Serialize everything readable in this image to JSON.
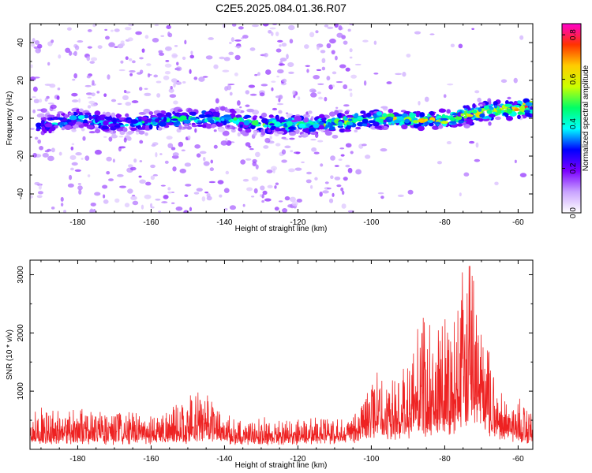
{
  "title": "C2E5.2025.084.01.36.R07",
  "chart_data": [
    {
      "type": "heatmap",
      "xlabel": "Height of straight line (km)",
      "ylabel": "Frequency (Hz)",
      "xlim": [
        -193,
        -56
      ],
      "ylim": [
        -50,
        50
      ],
      "xticks": [
        -180,
        -160,
        -140,
        -120,
        -100,
        -80,
        -60
      ],
      "xtick_labels": [
        "-180",
        "-160",
        "-140",
        "-120",
        "-100",
        "-80",
        "-60"
      ],
      "yticks": [
        -40,
        -20,
        0,
        20,
        40
      ],
      "ytick_labels": [
        "-40",
        "-20",
        "0",
        "20",
        "40"
      ],
      "colorbar": {
        "label": "Normalized spectral amplitude",
        "range": [
          0,
          0.85
        ],
        "ticks": [
          0.0,
          0.2,
          0.4,
          0.6,
          0.8
        ],
        "tick_labels": [
          "0.0",
          "0.2",
          "0.4",
          "0.6",
          "0.8"
        ],
        "colors": [
          "#ffffff",
          "#c9a3ff",
          "#7b00ff",
          "#0000ff",
          "#00ffff",
          "#00ff66",
          "#ccff00",
          "#ffcc00",
          "#ff3300",
          "#ff00cc"
        ]
      },
      "ridge": {
        "description_points_x": [
          -190,
          -180,
          -170,
          -160,
          -150,
          -140,
          -130,
          -120,
          -110,
          -100,
          -90,
          -80,
          -70,
          -60,
          -57
        ],
        "frequency_hz": [
          -4,
          0,
          -3,
          -2,
          0,
          0,
          -3,
          -3,
          -3,
          0,
          -1,
          -1,
          3,
          5,
          6
        ]
      }
    },
    {
      "type": "line",
      "xlabel": "Height of straight line (km)",
      "ylabel": "SNR (10 * v/v)",
      "xlim": [
        -193,
        -56
      ],
      "ylim": [
        0,
        3250
      ],
      "xticks": [
        -180,
        -160,
        -140,
        -120,
        -100,
        -80,
        -60
      ],
      "xtick_labels": [
        "-180",
        "-160",
        "-140",
        "-120",
        "-100",
        "-80",
        "-60"
      ],
      "yticks": [
        1000,
        2000,
        3000
      ],
      "ytick_labels": [
        "1000",
        "2000",
        "3000"
      ],
      "series_color": "#ee2222",
      "envelope": {
        "x": [
          -193,
          -185,
          -175,
          -165,
          -155,
          -148,
          -145,
          -143,
          -140,
          -130,
          -120,
          -110,
          -105,
          -102,
          -100,
          -95,
          -90,
          -87,
          -85,
          -82,
          -80,
          -78,
          -76,
          -74,
          -72,
          -70,
          -68,
          -66,
          -64,
          -62,
          -60,
          -58,
          -56
        ],
        "peak": [
          700,
          650,
          700,
          600,
          650,
          900,
          1050,
          750,
          550,
          500,
          550,
          500,
          650,
          850,
          1250,
          1100,
          1500,
          2000,
          2300,
          2000,
          2550,
          2200,
          2800,
          3250,
          3000,
          2200,
          1600,
          1200,
          900,
          800,
          900,
          700,
          550
        ],
        "base": [
          150,
          150,
          130,
          140,
          150,
          180,
          250,
          200,
          150,
          120,
          140,
          150,
          200,
          250,
          350,
          300,
          300,
          350,
          400,
          350,
          400,
          400,
          500,
          600,
          550,
          450,
          350,
          300,
          250,
          200,
          200,
          150,
          150
        ]
      }
    }
  ]
}
